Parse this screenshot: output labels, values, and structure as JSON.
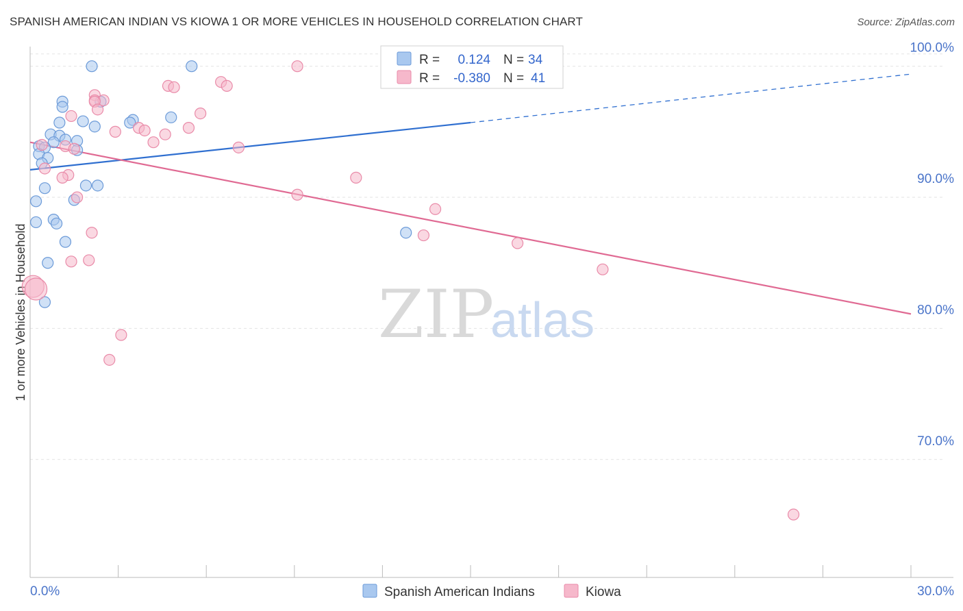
{
  "title": "SPANISH AMERICAN INDIAN VS KIOWA 1 OR MORE VEHICLES IN HOUSEHOLD CORRELATION CHART",
  "source": "Source: ZipAtlas.com",
  "watermark": {
    "zip": "ZIP",
    "atlas": "atlas"
  },
  "colors": {
    "blue_fill": "#a9c8ef",
    "blue_stroke": "#6b9ad8",
    "blue_line": "#2f6fd0",
    "pink_fill": "#f6b8cb",
    "pink_stroke": "#e98aa8",
    "pink_line": "#e06a93",
    "grid": "#e3e3e3",
    "axis_text": "#4a74c9"
  },
  "legend_box": {
    "rows": [
      {
        "r_label": "R =",
        "r_value": "0.124",
        "n_label": "N =",
        "n_value": "34"
      },
      {
        "r_label": "R =",
        "r_value": "-0.380",
        "n_label": "N =",
        "n_value": "41"
      }
    ]
  },
  "chart_data": {
    "type": "scatter",
    "title": "SPANISH AMERICAN INDIAN VS KIOWA 1 OR MORE VEHICLES IN HOUSEHOLD CORRELATION CHART",
    "xlabel": "",
    "ylabel": "1 or more Vehicles in Household",
    "xlim": [
      0,
      30
    ],
    "ylim": [
      61,
      101.5
    ],
    "x_ticks_labels": [
      "0.0%",
      "30.0%"
    ],
    "y_ticks": [
      70,
      80,
      90,
      100
    ],
    "y_tick_labels": [
      "70.0%",
      "80.0%",
      "90.0%",
      "100.0%"
    ],
    "grid": true,
    "legend_position": "bottom",
    "series": [
      {
        "name": "Spanish American Indians",
        "r": 0.124,
        "n": 34,
        "trend": {
          "x0": 0,
          "y0": 92.1,
          "x1": 15,
          "y1": 95.7,
          "dash_to_x": 30,
          "dash_to_y": 99.4
        },
        "points": [
          [
            2.1,
            100.0
          ],
          [
            5.5,
            100.0
          ],
          [
            1.1,
            97.3
          ],
          [
            1.1,
            96.9
          ],
          [
            2.4,
            97.3
          ],
          [
            1.0,
            95.7
          ],
          [
            1.8,
            95.8
          ],
          [
            2.2,
            95.4
          ],
          [
            3.5,
            95.9
          ],
          [
            3.4,
            95.7
          ],
          [
            4.8,
            96.1
          ],
          [
            0.7,
            94.8
          ],
          [
            1.0,
            94.7
          ],
          [
            0.8,
            94.2
          ],
          [
            1.2,
            94.4
          ],
          [
            1.6,
            94.3
          ],
          [
            0.3,
            93.9
          ],
          [
            0.5,
            93.8
          ],
          [
            1.6,
            93.6
          ],
          [
            0.3,
            93.3
          ],
          [
            0.6,
            93.0
          ],
          [
            0.4,
            92.6
          ],
          [
            1.9,
            90.9
          ],
          [
            2.3,
            90.9
          ],
          [
            0.5,
            90.7
          ],
          [
            1.5,
            89.8
          ],
          [
            0.2,
            89.7
          ],
          [
            0.8,
            88.3
          ],
          [
            0.9,
            88.0
          ],
          [
            0.2,
            88.1
          ],
          [
            1.2,
            86.6
          ],
          [
            12.8,
            87.3
          ],
          [
            0.6,
            85.0
          ],
          [
            0.5,
            82.0
          ]
        ]
      },
      {
        "name": "Kiowa",
        "r": -0.38,
        "n": 41,
        "trend": {
          "x0": 0,
          "y0": 94.2,
          "x1": 30,
          "y1": 81.1
        },
        "points": [
          [
            9.1,
            100.0
          ],
          [
            16.2,
            100.0
          ],
          [
            6.5,
            98.8
          ],
          [
            6.7,
            98.5
          ],
          [
            4.7,
            98.5
          ],
          [
            4.9,
            98.4
          ],
          [
            2.2,
            97.8
          ],
          [
            2.2,
            97.4
          ],
          [
            2.5,
            97.4
          ],
          [
            2.2,
            97.3
          ],
          [
            2.3,
            96.7
          ],
          [
            5.8,
            96.4
          ],
          [
            1.4,
            96.2
          ],
          [
            3.7,
            95.3
          ],
          [
            5.4,
            95.3
          ],
          [
            3.9,
            95.1
          ],
          [
            2.9,
            95.0
          ],
          [
            4.6,
            94.8
          ],
          [
            4.2,
            94.2
          ],
          [
            0.4,
            94.0
          ],
          [
            1.2,
            93.9
          ],
          [
            1.5,
            93.7
          ],
          [
            7.1,
            93.8
          ],
          [
            0.5,
            92.2
          ],
          [
            1.3,
            91.7
          ],
          [
            1.1,
            91.5
          ],
          [
            11.1,
            91.5
          ],
          [
            9.1,
            90.2
          ],
          [
            1.6,
            90.0
          ],
          [
            13.8,
            89.1
          ],
          [
            2.1,
            87.3
          ],
          [
            13.4,
            87.1
          ],
          [
            16.6,
            86.5
          ],
          [
            2.0,
            85.2
          ],
          [
            1.4,
            85.1
          ],
          [
            19.5,
            84.5
          ],
          [
            0.1,
            83.2
          ],
          [
            3.1,
            79.5
          ],
          [
            2.7,
            77.6
          ],
          [
            26.0,
            65.8
          ],
          [
            0.2,
            83.0
          ]
        ]
      }
    ]
  }
}
